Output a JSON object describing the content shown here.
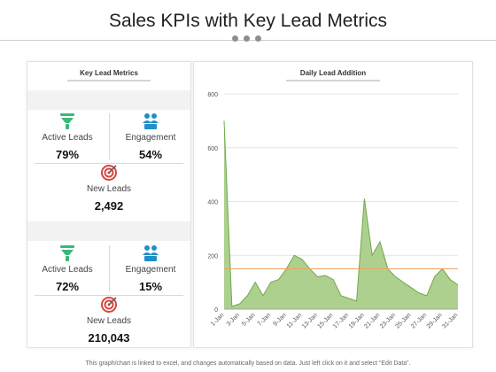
{
  "header": {
    "title": "Sales KPIs with Key Lead Metrics"
  },
  "left_panel": {
    "title": "Key Lead Metrics",
    "blocks": [
      {
        "active_label": "Active Leads",
        "active_value": "79%",
        "engagement_label": "Engagement",
        "engagement_value": "54%",
        "new_label": "New Leads",
        "new_value": "2,492"
      },
      {
        "active_label": "Active Leads",
        "active_value": "72%",
        "engagement_label": "Engagement",
        "engagement_value": "15%",
        "new_label": "New Leads",
        "new_value": "210,043"
      }
    ]
  },
  "colors": {
    "funnel": "#3cb878",
    "people": "#1f8fc9",
    "target": "#d9453f",
    "area_fill": "#aed08e",
    "area_stroke": "#6ea84c",
    "threshold": "#f0a35e"
  },
  "chart_data": {
    "type": "area",
    "title": "Daily Lead Addition",
    "x": [
      "1-Jan",
      "2-Jan",
      "3-Jan",
      "4-Jan",
      "5-Jan",
      "6-Jan",
      "7-Jan",
      "8-Jan",
      "9-Jan",
      "10-Jan",
      "11-Jan",
      "12-Jan",
      "13-Jan",
      "14-Jan",
      "15-Jan",
      "16-Jan",
      "17-Jan",
      "18-Jan",
      "19-Jan",
      "20-Jan",
      "21-Jan",
      "22-Jan",
      "23-Jan",
      "24-Jan",
      "25-Jan",
      "26-Jan",
      "27-Jan",
      "28-Jan",
      "29-Jan",
      "30-Jan",
      "31-Jan"
    ],
    "x_tick_labels": [
      "1-Jan",
      "3-Jan",
      "5-Jan",
      "7-Jan",
      "9-Jan",
      "11-Jan",
      "13-Jan",
      "15-Jan",
      "17-Jan",
      "19-Jan",
      "21-Jan",
      "23-Jan",
      "25-Jan",
      "27-Jan",
      "29-Jan",
      "31-Jan"
    ],
    "values": [
      700,
      10,
      20,
      50,
      100,
      50,
      100,
      110,
      150,
      200,
      185,
      150,
      120,
      125,
      110,
      50,
      40,
      30,
      410,
      200,
      250,
      150,
      120,
      100,
      80,
      60,
      50,
      120,
      150,
      110,
      90
    ],
    "threshold": 150,
    "ylim": [
      0,
      800
    ],
    "yticks": [
      0,
      200,
      400,
      600,
      800
    ],
    "grid": true
  },
  "footer": {
    "note": "This graph/chart is linked to excel, and changes automatically based on data. Just left click on it and select “Edit Data”."
  }
}
